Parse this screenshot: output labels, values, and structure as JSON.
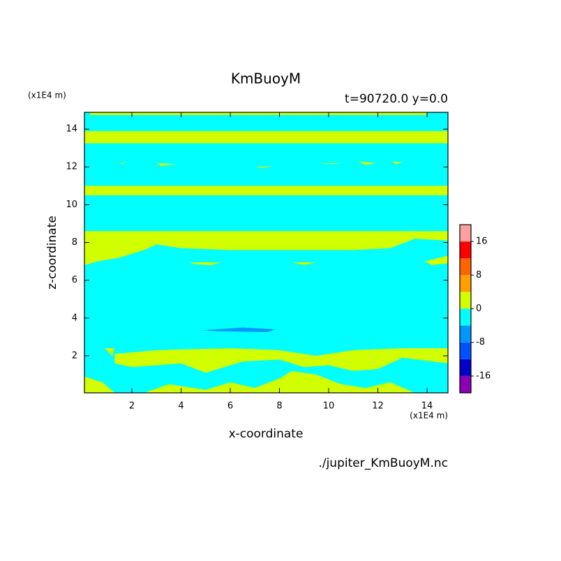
{
  "chart_data": {
    "type": "contour",
    "title": "KmBuoyM",
    "subtitle": "t=90720.0 y=0.0",
    "x_label": "x-coordinate",
    "y_label": "z-coordinate",
    "x_unit": "(x1E4 m)",
    "y_unit": "(x1E4 m)",
    "source": "./jupiter_KmBuoyM.nc",
    "xlim": [
      0.07,
      14.85
    ],
    "ylim": [
      0.04,
      14.89
    ],
    "xticks": [
      2,
      4,
      6,
      8,
      10,
      12,
      14
    ],
    "yticks": [
      2,
      4,
      6,
      8,
      10,
      12,
      14
    ],
    "colorbar": {
      "levels": [
        -20,
        -16,
        -12,
        -8,
        -4,
        0,
        4,
        8,
        12,
        16,
        20
      ],
      "colors": [
        "#8c00b4",
        "#0000c8",
        "#0050ff",
        "#0096ff",
        "#00ffff",
        "#d2ff00",
        "#ffa000",
        "#ff6400",
        "#ff0000",
        "#ffa0a0"
      ],
      "ticks": [
        -16,
        -8,
        0,
        8,
        16
      ]
    },
    "regions": [
      {
        "level": -4,
        "points": [
          [
            0.07,
            0.04
          ],
          [
            14.85,
            0.04
          ],
          [
            14.85,
            14.89
          ],
          [
            0.07,
            14.89
          ]
        ]
      },
      {
        "level": 0,
        "points": [
          [
            0.3,
            14.75
          ],
          [
            14.0,
            14.75
          ],
          [
            14.0,
            14.89
          ],
          [
            0.3,
            14.89
          ]
        ]
      },
      {
        "level": 0,
        "points": [
          [
            0.07,
            13.25
          ],
          [
            14.85,
            13.25
          ],
          [
            14.85,
            13.9
          ],
          [
            0.07,
            13.9
          ]
        ]
      },
      {
        "level": 0,
        "points": [
          [
            0.07,
            10.5
          ],
          [
            14.85,
            10.5
          ],
          [
            14.85,
            11.0
          ],
          [
            0.07,
            11.0
          ]
        ]
      },
      {
        "level": 0,
        "points": [
          [
            0.07,
            8.6
          ],
          [
            14.85,
            8.6
          ],
          [
            14.85,
            8.1
          ],
          [
            13.5,
            8.2
          ],
          [
            12.5,
            7.7
          ],
          [
            11,
            7.6
          ],
          [
            6,
            7.6
          ],
          [
            4,
            7.7
          ],
          [
            3,
            7.9
          ],
          [
            2.5,
            7.6
          ],
          [
            1.5,
            7.2
          ],
          [
            0.6,
            7.0
          ],
          [
            0.07,
            6.8
          ]
        ]
      },
      {
        "level": 0,
        "points": [
          [
            13.9,
            7.0
          ],
          [
            14.85,
            7.3
          ],
          [
            14.85,
            6.9
          ],
          [
            14.2,
            6.8
          ]
        ]
      },
      {
        "level": 0,
        "points": [
          [
            4.3,
            6.95
          ],
          [
            5.6,
            6.95
          ],
          [
            5.2,
            6.8
          ],
          [
            4.6,
            6.85
          ]
        ]
      },
      {
        "level": 0,
        "points": [
          [
            8.5,
            6.95
          ],
          [
            9.5,
            6.95
          ],
          [
            9.0,
            6.8
          ]
        ]
      },
      {
        "level": 0,
        "points": [
          [
            1.5,
            12.2
          ],
          [
            1.8,
            12.25
          ],
          [
            1.6,
            12.15
          ]
        ]
      },
      {
        "level": 0,
        "points": [
          [
            3.0,
            12.2
          ],
          [
            3.8,
            12.15
          ],
          [
            3.2,
            12.05
          ]
        ]
      },
      {
        "level": 0,
        "points": [
          [
            7.0,
            12.0
          ],
          [
            7.8,
            12.05
          ],
          [
            7.3,
            11.95
          ]
        ]
      },
      {
        "level": 0,
        "points": [
          [
            9.6,
            12.2
          ],
          [
            10.6,
            12.2
          ],
          [
            10.1,
            12.15
          ]
        ]
      },
      {
        "level": 0,
        "points": [
          [
            11.2,
            12.3
          ],
          [
            11.9,
            12.2
          ],
          [
            11.5,
            12.1
          ]
        ]
      },
      {
        "level": 0,
        "points": [
          [
            12.6,
            12.3
          ],
          [
            13.0,
            12.25
          ],
          [
            12.7,
            12.15
          ]
        ]
      },
      {
        "level": -8,
        "points": [
          [
            4.86,
            3.35
          ],
          [
            6.5,
            3.5
          ],
          [
            7.85,
            3.4
          ],
          [
            7.5,
            3.26
          ],
          [
            5.5,
            3.3
          ]
        ]
      },
      {
        "level": 0,
        "points": [
          [
            1.3,
            2.1
          ],
          [
            3,
            2.3
          ],
          [
            6,
            2.4
          ],
          [
            8,
            2.3
          ],
          [
            9.5,
            2.0
          ],
          [
            11,
            2.3
          ],
          [
            13,
            2.4
          ],
          [
            14.85,
            2.4
          ],
          [
            14.85,
            1.6
          ],
          [
            13,
            1.9
          ],
          [
            12,
            1.3
          ],
          [
            11,
            1.2
          ],
          [
            10,
            1.5
          ],
          [
            9,
            1.4
          ],
          [
            8,
            1.8
          ],
          [
            6.5,
            1.7
          ],
          [
            5,
            1.1
          ],
          [
            4,
            1.6
          ],
          [
            3,
            1.5
          ],
          [
            2,
            1.4
          ],
          [
            1.3,
            1.6
          ]
        ]
      },
      {
        "level": 0,
        "points": [
          [
            0.07,
            0.9
          ],
          [
            0.8,
            0.6
          ],
          [
            1.3,
            0.04
          ],
          [
            0.07,
            0.04
          ]
        ]
      },
      {
        "level": 0,
        "points": [
          [
            2.5,
            0.04
          ],
          [
            3.5,
            0.5
          ],
          [
            5,
            0.2
          ],
          [
            6,
            0.6
          ],
          [
            7,
            0.3
          ],
          [
            8,
            0.8
          ],
          [
            8.5,
            1.2
          ],
          [
            9.5,
            1.0
          ],
          [
            10.5,
            0.5
          ],
          [
            11.5,
            0.3
          ],
          [
            12.5,
            0.6
          ],
          [
            13.5,
            0.04
          ]
        ]
      },
      {
        "level": 0,
        "points": [
          [
            0.9,
            2.4
          ],
          [
            1.3,
            2.4
          ],
          [
            1.2,
            2.0
          ]
        ]
      }
    ]
  }
}
